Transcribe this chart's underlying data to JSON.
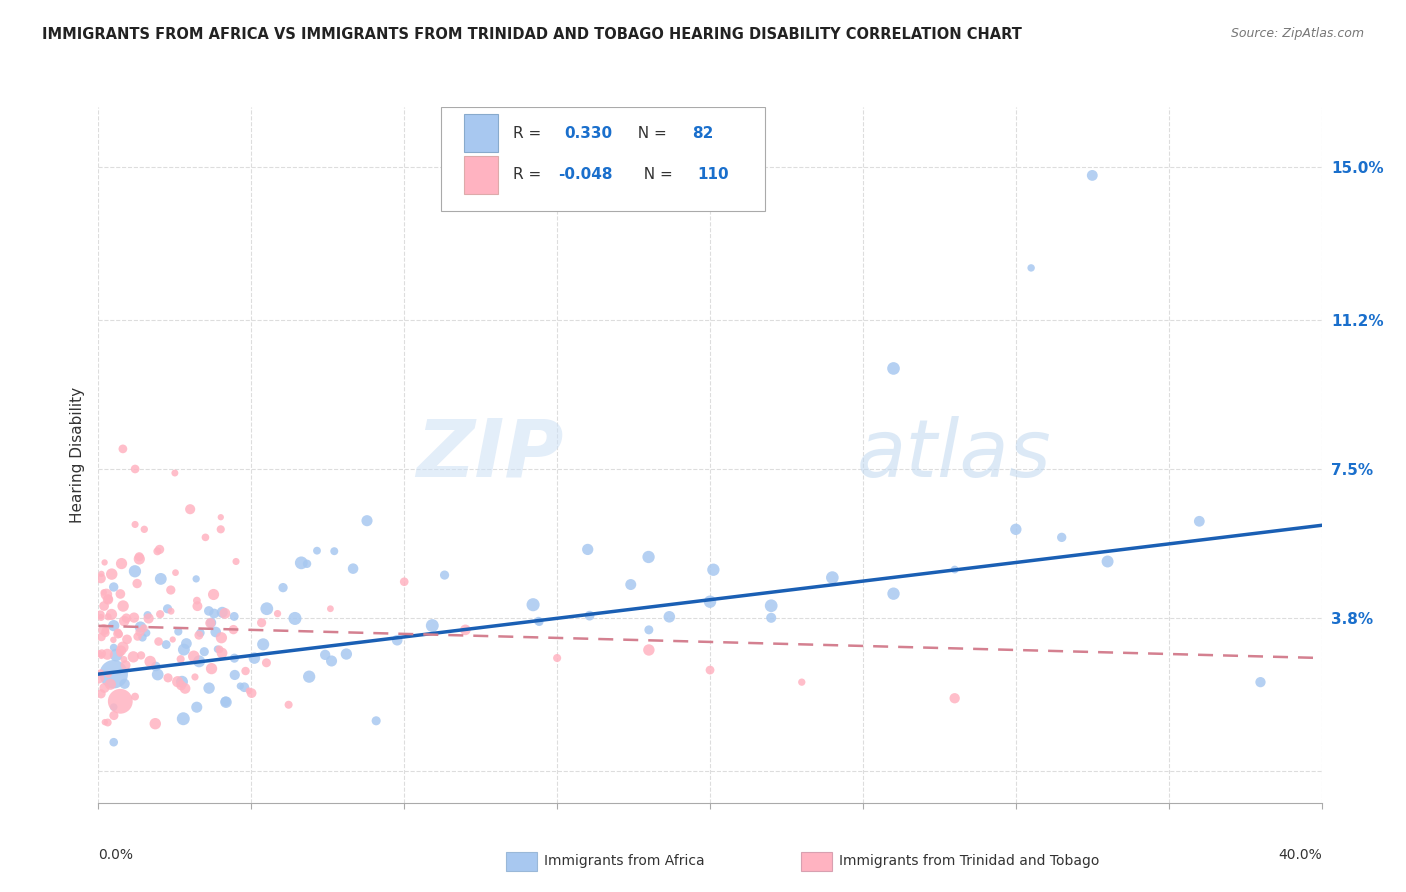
{
  "title": "IMMIGRANTS FROM AFRICA VS IMMIGRANTS FROM TRINIDAD AND TOBAGO HEARING DISABILITY CORRELATION CHART",
  "source": "Source: ZipAtlas.com",
  "ylabel": "Hearing Disability",
  "yticks": [
    0.0,
    0.038,
    0.075,
    0.112,
    0.15
  ],
  "ytick_labels": [
    "",
    "3.8%",
    "7.5%",
    "11.2%",
    "15.0%"
  ],
  "xlim": [
    0.0,
    0.4
  ],
  "ylim": [
    -0.008,
    0.165
  ],
  "series1_name": "Immigrants from Africa",
  "series1_R": 0.33,
  "series1_N": 82,
  "series1_color": "#a8c8f0",
  "series1_line_color": "#1a5fb4",
  "series2_name": "Immigrants from Trinidad and Tobago",
  "series2_R": -0.048,
  "series2_N": 110,
  "series2_color": "#ffb3c1",
  "series2_line_color": "#d48090",
  "watermark_zip": "ZIP",
  "watermark_atlas": "atlas",
  "background_color": "#ffffff",
  "grid_color": "#dddddd",
  "trend1_y0": 0.024,
  "trend1_y1": 0.061,
  "trend2_y0": 0.036,
  "trend2_y1": 0.028
}
